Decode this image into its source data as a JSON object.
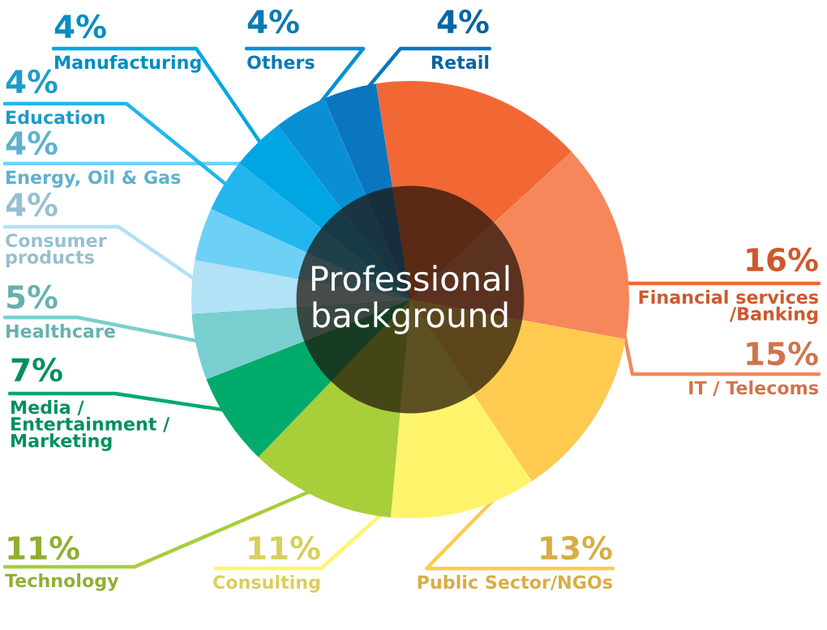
{
  "chart_data": {
    "type": "donut",
    "title": "Professional\nbackground",
    "categories": [
      "Financial services\n/Banking",
      "IT / Telecoms",
      "Public Sector/NGOs",
      "Consulting",
      "Technology",
      "Media /\nEntertainment /\nMarketing",
      "Healthcare",
      "Consumer\nproducts",
      "Energy, Oil & Gas",
      "Education",
      "Manufacturing",
      "Others",
      "Retail"
    ],
    "values": [
      16,
      15,
      13,
      11,
      11,
      7,
      5,
      4,
      4,
      4,
      4,
      4,
      4
    ],
    "value_labels": [
      "16%",
      "15%",
      "13%",
      "11%",
      "11%",
      "7%",
      "5%",
      "4%",
      "4%",
      "4%",
      "4%",
      "4%",
      "4%"
    ],
    "colors": [
      "#f26835",
      "#f6875a",
      "#fecb50",
      "#fef46c",
      "#a8ce3a",
      "#00ab6b",
      "#79cfcf",
      "#b1e2f5",
      "#6fd0f5",
      "#22b6ee",
      "#00a6e4",
      "#0b8fd4",
      "#0a76c0"
    ]
  }
}
